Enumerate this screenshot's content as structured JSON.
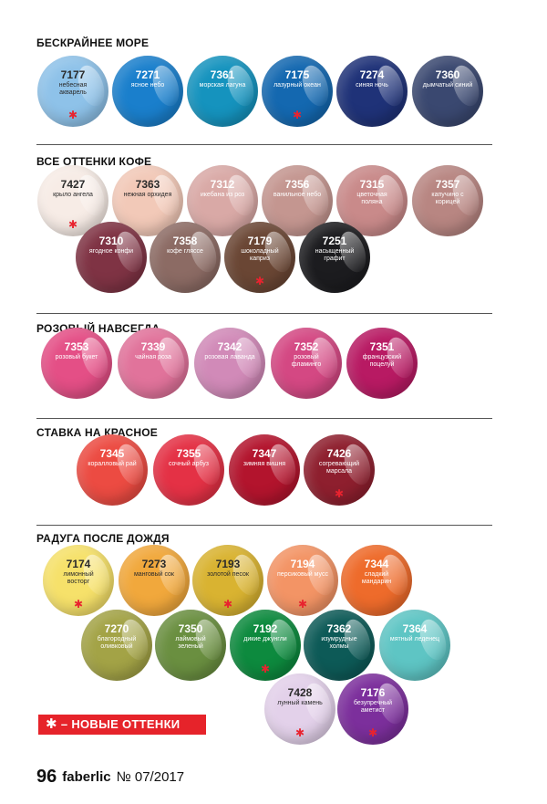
{
  "sections": [
    {
      "title": "БЕСКРАЙНЕЕ МОРЕ",
      "swatches": [
        {
          "code": "7177",
          "name": "небесная акварель",
          "color": "#8ec2e9",
          "text": "light",
          "new": true
        },
        {
          "code": "7271",
          "name": "ясное небо",
          "color": "#1a7fcc",
          "text": "dark",
          "new": false
        },
        {
          "code": "7361",
          "name": "морская лагуна",
          "color": "#1593be",
          "text": "dark",
          "new": false
        },
        {
          "code": "7175",
          "name": "лазурный океан",
          "color": "#1468b0",
          "text": "dark",
          "new": true
        },
        {
          "code": "7274",
          "name": "синяя ночь",
          "color": "#1f3278",
          "text": "dark",
          "new": false
        },
        {
          "code": "7360",
          "name": "дымчатый синий",
          "color": "#3a4870",
          "text": "dark",
          "new": false
        }
      ]
    },
    {
      "title": "ВСЕ ОТТЕНКИ КОФЕ",
      "swatches": [
        {
          "code": "7427",
          "name": "крыло ангела",
          "color": "#f7ece6",
          "text": "light",
          "new": true
        },
        {
          "code": "7363",
          "name": "нежная орхидея",
          "color": "#f2c9b8",
          "text": "light",
          "new": false
        },
        {
          "code": "7312",
          "name": "икебана из роз",
          "color": "#d9a9a6",
          "text": "dark",
          "new": false
        },
        {
          "code": "7356",
          "name": "ванильное небо",
          "color": "#c49690",
          "text": "dark",
          "new": false
        },
        {
          "code": "7315",
          "name": "цветочная поляна",
          "color": "#c98a8a",
          "text": "dark",
          "new": false
        },
        {
          "code": "7357",
          "name": "капучино с корицей",
          "color": "#b88682",
          "text": "dark",
          "new": false
        },
        {
          "code": "7310",
          "name": "ягодное конфи",
          "color": "#7f3344",
          "text": "dark",
          "new": false
        },
        {
          "code": "7358",
          "name": "кофе гляссе",
          "color": "#8c6b64",
          "text": "dark",
          "new": false
        },
        {
          "code": "7179",
          "name": "шоколадный каприз",
          "color": "#6a4634",
          "text": "dark",
          "new": true
        },
        {
          "code": "7251",
          "name": "насыщенный графит",
          "color": "#1c1c1f",
          "text": "dark",
          "new": false
        }
      ]
    },
    {
      "title": "РОЗОВЫЙ НАВСЕГДА",
      "swatches": [
        {
          "code": "7353",
          "name": "розовый букет",
          "color": "#e44f86",
          "text": "dark",
          "new": false
        },
        {
          "code": "7339",
          "name": "чайная роза",
          "color": "#e1739b",
          "text": "dark",
          "new": false
        },
        {
          "code": "7342",
          "name": "розовая лаванда",
          "color": "#d18ab8",
          "text": "dark",
          "new": false
        },
        {
          "code": "7352",
          "name": "розовый фламинго",
          "color": "#d44883",
          "text": "dark",
          "new": false
        },
        {
          "code": "7351",
          "name": "французский поцелуй",
          "color": "#b81a63",
          "text": "dark",
          "new": false
        }
      ]
    },
    {
      "title": "СТАВКА НА КРАСНОЕ",
      "swatches": [
        {
          "code": "7345",
          "name": "коралловый рай",
          "color": "#ec4b42",
          "text": "dark",
          "new": false
        },
        {
          "code": "7355",
          "name": "сочный арбуз",
          "color": "#e43145",
          "text": "dark",
          "new": false
        },
        {
          "code": "7347",
          "name": "зимняя вишня",
          "color": "#b3142d",
          "text": "dark",
          "new": false
        },
        {
          "code": "7426",
          "name": "согревающий марсала",
          "color": "#8e1f2e",
          "text": "dark",
          "new": true
        }
      ]
    },
    {
      "title": "РАДУГА ПОСЛЕ ДОЖДЯ",
      "swatches": [
        {
          "code": "7174",
          "name": "лимонный восторг",
          "color": "#f6e16a",
          "text": "light",
          "new": true
        },
        {
          "code": "7273",
          "name": "манговый сок",
          "color": "#f1a83c",
          "text": "light",
          "new": false
        },
        {
          "code": "7193",
          "name": "золотой песок",
          "color": "#d9b331",
          "text": "light",
          "new": true
        },
        {
          "code": "7194",
          "name": "персиковый мусс",
          "color": "#f39465",
          "text": "dark",
          "new": true
        },
        {
          "code": "7344",
          "name": "сладкий мандарин",
          "color": "#ee6b2b",
          "text": "dark",
          "new": false
        },
        {
          "code": "7270",
          "name": "благородный оливковый",
          "color": "#a3a346",
          "text": "dark",
          "new": false
        },
        {
          "code": "7350",
          "name": "лаймовый зеленый",
          "color": "#6a8f40",
          "text": "dark",
          "new": false
        },
        {
          "code": "7192",
          "name": "дикие джунгли",
          "color": "#0d8a3e",
          "text": "dark",
          "new": true
        },
        {
          "code": "7362",
          "name": "изумрудные холмы",
          "color": "#0d5a57",
          "text": "dark",
          "new": false
        },
        {
          "code": "7364",
          "name": "мятный леденец",
          "color": "#5ec5c4",
          "text": "dark",
          "new": false
        },
        {
          "code": "7428",
          "name": "лунный камень",
          "color": "#e3d1ea",
          "text": "light",
          "new": true
        },
        {
          "code": "7176",
          "name": "безупречный аметист",
          "color": "#7c2f9c",
          "text": "dark",
          "new": true
        }
      ]
    }
  ],
  "legend": {
    "star": "✱",
    "label": "– НОВЫЕ ОТТЕНКИ",
    "color": "#e6232a"
  },
  "footer": {
    "page": "96",
    "brand": "faberlic",
    "issue": "№ 07/2017"
  }
}
